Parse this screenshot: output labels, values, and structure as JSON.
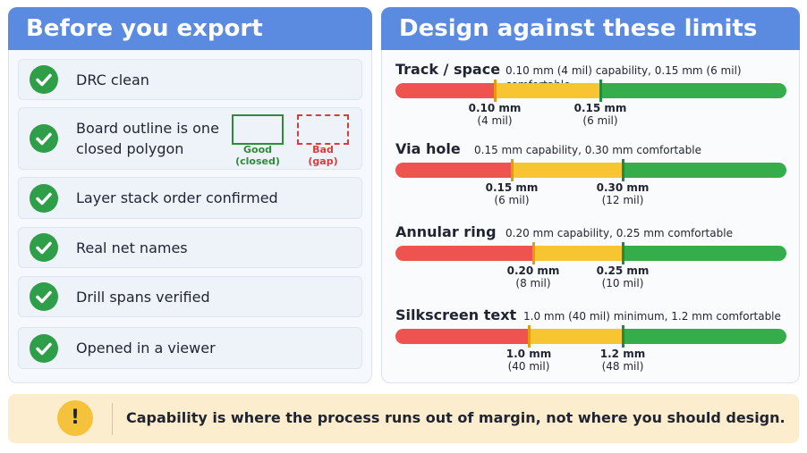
{
  "header_left": "Before you export",
  "checklist": [
    {
      "label": "DRC clean"
    },
    {
      "label": "Board outline is one closed polygon",
      "examples": [
        {
          "label": "Good",
          "note": "(closed)"
        },
        {
          "label": "Bad",
          "note": "(gap)"
        }
      ]
    },
    {
      "label": "Layer stack order confirmed"
    },
    {
      "label": "Real net names"
    },
    {
      "label": "Drill spans verified"
    },
    {
      "label": "Opened in a viewer"
    }
  ],
  "header_right": "Design against these limits",
  "limits": [
    {
      "name": "Track / space",
      "note": "0.10 mm (4 mil) capability, 0.15 mm (6 mil) comfortable",
      "markers": [
        {
          "value": "0.10 mm",
          "alt": "(4 mil)"
        },
        {
          "value": "0.15 mm",
          "alt": "(6 mil)"
        }
      ]
    },
    {
      "name": "Via hole",
      "note": "0.15 mm capability, 0.30 mm comfortable",
      "markers": [
        {
          "value": "0.15 mm",
          "alt": "(6 mil)"
        },
        {
          "value": "0.30 mm",
          "alt": "(12 mil)"
        }
      ]
    },
    {
      "name": "Annular ring",
      "note": "0.20 mm capability, 0.25 mm comfortable",
      "markers": [
        {
          "value": "0.20 mm",
          "alt": "(8 mil)"
        },
        {
          "value": "0.25 mm",
          "alt": "(10 mil)"
        }
      ]
    },
    {
      "name": "Silkscreen text",
      "note": "1.0 mm (40 mil) minimum, 1.2 mm comfortable",
      "markers": [
        {
          "value": "1.0 mm",
          "alt": "(40 mil)"
        },
        {
          "value": "1.2 mm",
          "alt": "(48 mil)"
        }
      ]
    }
  ],
  "callout": "Capability is where the process runs out of margin, not where you should design."
}
